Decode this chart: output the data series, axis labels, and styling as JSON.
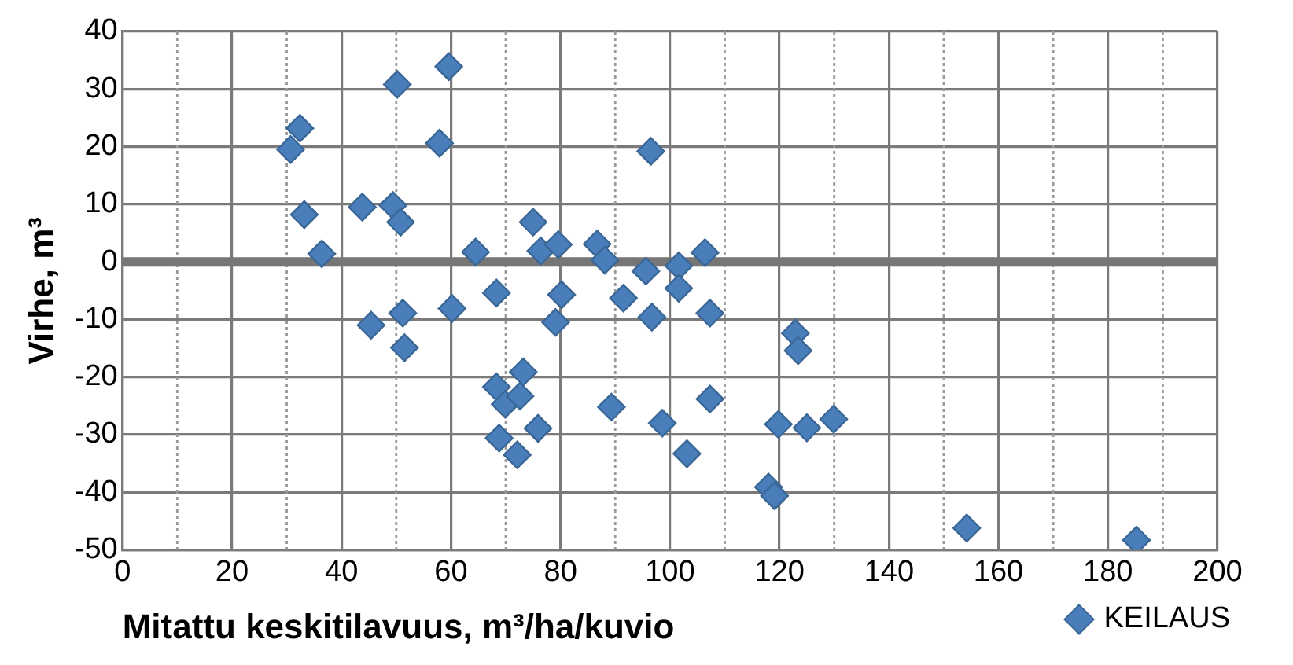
{
  "chart_data": {
    "type": "scatter",
    "xlabel": "Mitattu keskitilavuus, m³/ha/kuvio",
    "ylabel": "Virhe, m³",
    "xlim": [
      0,
      200
    ],
    "xticks": [
      0,
      {
        "value": 10,
        "label": null
      },
      20,
      {
        "value": 30,
        "label": null
      },
      40,
      {
        "value": 50,
        "label": null
      },
      60,
      {
        "value": 70,
        "label": null
      },
      80,
      {
        "value": 90,
        "label": null
      },
      100,
      {
        "value": 110,
        "label": null
      },
      120,
      {
        "value": 130,
        "label": null
      },
      140,
      {
        "value": 150,
        "label": null
      },
      160,
      {
        "value": 170,
        "label": null
      },
      180,
      {
        "value": 190,
        "label": null
      },
      200
    ],
    "ylim": [
      -50,
      40
    ],
    "yticks": [
      -50,
      -40,
      -30,
      -20,
      -10,
      0,
      10,
      20,
      30,
      40
    ],
    "grid": true,
    "legend": "bottom right",
    "marker": "diamond",
    "ref_lines": [
      {
        "axis": "y",
        "value": 0,
        "color": "#767676"
      }
    ],
    "series": [
      {
        "name": "KEILAUS",
        "color": "#4a7ebb",
        "x": [
          59.6,
          50.2,
          32.4,
          30.7,
          57.9,
          33.2,
          36.4,
          43.8,
          49.4,
          50.8,
          64.5,
          68.3,
          60.2,
          45.4,
          51.2,
          51.5,
          68.3,
          73.2,
          69.9,
          72.6,
          68.8,
          72.1,
          75.0,
          76.4,
          79.6,
          86.7,
          88.1,
          96.5,
          95.6,
          101.6,
          106.4,
          80.2,
          79.1,
          91.5,
          101.6,
          96.7,
          107.3,
          122.9,
          123.4,
          75.9,
          89.3,
          98.6,
          107.3,
          103.1,
          119.8,
          125.0,
          129.9,
          118.0,
          119.1,
          154.2,
          185.2
        ],
        "values": [
          33.9,
          30.8,
          23.2,
          19.5,
          20.6,
          8.2,
          1.4,
          9.5,
          9.8,
          6.9,
          1.7,
          -5.4,
          -8.1,
          -11.0,
          -8.9,
          -14.9,
          -21.7,
          -19.1,
          -24.7,
          -23.3,
          -30.6,
          -33.5,
          6.9,
          1.9,
          3.0,
          3.1,
          0.3,
          19.2,
          -1.6,
          -0.7,
          1.6,
          -5.7,
          -10.5,
          -6.3,
          -4.6,
          -9.6,
          -8.9,
          -12.4,
          -15.4,
          -28.9,
          -25.2,
          -28.0,
          -23.8,
          -33.3,
          -28.2,
          -28.8,
          -27.3,
          -39.1,
          -40.6,
          -46.2,
          -48.3
        ]
      }
    ]
  }
}
